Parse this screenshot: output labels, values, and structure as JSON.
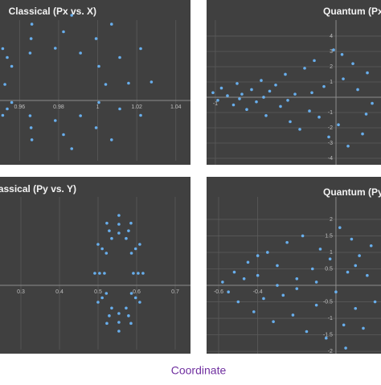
{
  "chart_data": [
    {
      "type": "scatter",
      "title": "Classical (Px vs. X)",
      "color": "#6ab4f5",
      "xlim": [
        0.95,
        1.0475
      ],
      "ylim": [
        -0.075,
        0.1
      ],
      "xticks": [
        0.96,
        0.98,
        1,
        1.02,
        1.04
      ],
      "yticks": [],
      "grid": true,
      "x": [
        1.0275,
        1.022,
        1.0071,
        0.9867,
        0.9663,
        0.9514,
        0.9459,
        0.9514,
        0.9663,
        0.9867,
        1.0071,
        1.022,
        1.0158,
        1.0113,
        0.9992,
        0.9825,
        0.9659,
        0.9537,
        0.9492,
        0.9537,
        0.9659,
        0.9825,
        0.9992,
        1.0113,
        1.0041,
        1.0006,
        0.9912,
        0.9783,
        0.9654,
        0.956,
        0.9525,
        0.956,
        0.9654,
        0.9783,
        0.9912,
        1.0006
      ],
      "y": [
        0.023,
        0.0645,
        0.0949,
        0.106,
        0.0949,
        0.0645,
        0.023,
        -0.0185,
        -0.0489,
        -0.06,
        -0.0489,
        -0.0185,
        0.0215,
        0.0535,
        0.0769,
        0.0855,
        0.0769,
        0.0535,
        0.0215,
        -0.0105,
        -0.0339,
        -0.0425,
        -0.0339,
        -0.0105,
        0.02,
        0.0425,
        0.059,
        0.065,
        0.059,
        0.0425,
        0.02,
        -0.0025,
        -0.019,
        -0.025,
        -0.019,
        -0.0025
      ]
    },
    {
      "type": "scatter",
      "title": "Quantum (Px vs. X)",
      "color": "#6ab4f5",
      "xlim": [
        -1.073,
        0.373
      ],
      "ylim": [
        -4.42,
        5.05
      ],
      "xticks": [
        -1
      ],
      "yticks": [
        4,
        3,
        2,
        1,
        -1,
        -2,
        -3,
        -4
      ],
      "grid": true,
      "x": [
        -1.02,
        -0.98,
        -0.95,
        -0.9,
        -0.85,
        -0.82,
        -0.78,
        -0.74,
        -0.7,
        -0.66,
        -0.62,
        -0.58,
        -0.55,
        -0.5,
        -0.46,
        -0.42,
        -0.38,
        -0.34,
        -0.3,
        -0.26,
        -0.22,
        -0.18,
        -0.14,
        -0.1,
        -0.06,
        -0.02,
        0.02,
        0.06,
        0.1,
        0.14,
        0.18,
        0.22,
        0.26,
        0.3,
        -0.8,
        -0.6,
        -0.4,
        -0.2,
        0.05,
        0.25
      ],
      "y": [
        0.3,
        -0.2,
        0.6,
        0.1,
        -0.5,
        0.9,
        0.2,
        -0.8,
        0.5,
        -0.3,
        1.1,
        -1.2,
        0.4,
        0.8,
        -0.6,
        1.5,
        -1.6,
        0.2,
        -2.1,
        1.9,
        -0.9,
        2.4,
        -1.3,
        0.7,
        -2.6,
        3.1,
        -1.8,
        1.2,
        -3.2,
        2.2,
        0.5,
        -2.4,
        1.6,
        -0.4,
        -0.1,
        0.0,
        -0.2,
        0.3,
        2.8,
        -1.1
      ]
    },
    {
      "type": "scatter",
      "title": "Classical (Py vs. Y)",
      "color": "#6ab4f5",
      "xlim": [
        0.2458,
        0.7396
      ],
      "ylim": [
        -0.8,
        1.1
      ],
      "xticks": [
        0.3,
        0.4,
        0.5,
        0.6,
        0.7
      ],
      "yticks": [],
      "grid": true,
      "x": [
        0.6165,
        0.6081,
        0.5853,
        0.554,
        0.5228,
        0.4999,
        0.4915,
        0.4999,
        0.5228,
        0.554,
        0.5853,
        0.6081,
        0.604,
        0.5973,
        0.579,
        0.554,
        0.529,
        0.5107,
        0.504,
        0.5107,
        0.529,
        0.554,
        0.579,
        0.5973,
        0.5915,
        0.5865,
        0.5728,
        0.554,
        0.5353,
        0.5215,
        0.5165,
        0.5215,
        0.5353,
        0.554,
        0.5728,
        0.5865
      ],
      "y": [
        0.15,
        0.51,
        0.7735,
        0.87,
        0.7735,
        0.51,
        0.15,
        -0.21,
        -0.4735,
        -0.57,
        -0.4735,
        -0.21,
        0.15,
        0.455,
        0.6783,
        0.76,
        0.6783,
        0.455,
        0.15,
        -0.155,
        -0.3783,
        -0.46,
        -0.3783,
        -0.155,
        0.15,
        0.4,
        0.583,
        0.65,
        0.583,
        0.4,
        0.15,
        -0.1,
        -0.283,
        -0.35,
        -0.283,
        -0.1
      ]
    },
    {
      "type": "scatter",
      "title": "Quantum (Py vs. Y)",
      "color": "#6ab4f5",
      "xlim": [
        -0.6617,
        0.2305
      ],
      "ylim": [
        -2.07,
        2.68
      ],
      "xticks": [
        -0.6,
        -0.4
      ],
      "yticks": [
        2,
        1.5,
        1,
        0.5,
        -0.5,
        -1,
        -1.5,
        -2
      ],
      "grid": true,
      "x": [
        -0.58,
        -0.55,
        -0.52,
        -0.5,
        -0.47,
        -0.45,
        -0.42,
        -0.4,
        -0.37,
        -0.35,
        -0.32,
        -0.3,
        -0.27,
        -0.25,
        -0.22,
        -0.2,
        -0.17,
        -0.15,
        -0.12,
        -0.1,
        -0.08,
        -0.05,
        -0.03,
        0.0,
        0.02,
        0.04,
        0.06,
        0.08,
        0.1,
        0.12,
        0.14,
        0.16,
        0.18,
        0.2,
        -0.3,
        -0.2,
        -0.1,
        0.05,
        -0.4,
        0.1
      ],
      "y": [
        0.1,
        -0.2,
        0.4,
        -0.5,
        0.2,
        0.7,
        -0.8,
        0.3,
        -0.4,
        1.0,
        -1.1,
        0.6,
        -0.3,
        1.3,
        -0.9,
        0.2,
        1.5,
        -1.4,
        0.5,
        -0.6,
        1.1,
        -1.6,
        0.8,
        -0.2,
        1.75,
        -1.2,
        0.4,
        1.4,
        -0.7,
        0.9,
        -1.3,
        0.3,
        1.2,
        -0.5,
        0.0,
        -0.1,
        0.1,
        -1.9,
        0.9,
        0.6
      ]
    }
  ],
  "caption": "Coordinate"
}
